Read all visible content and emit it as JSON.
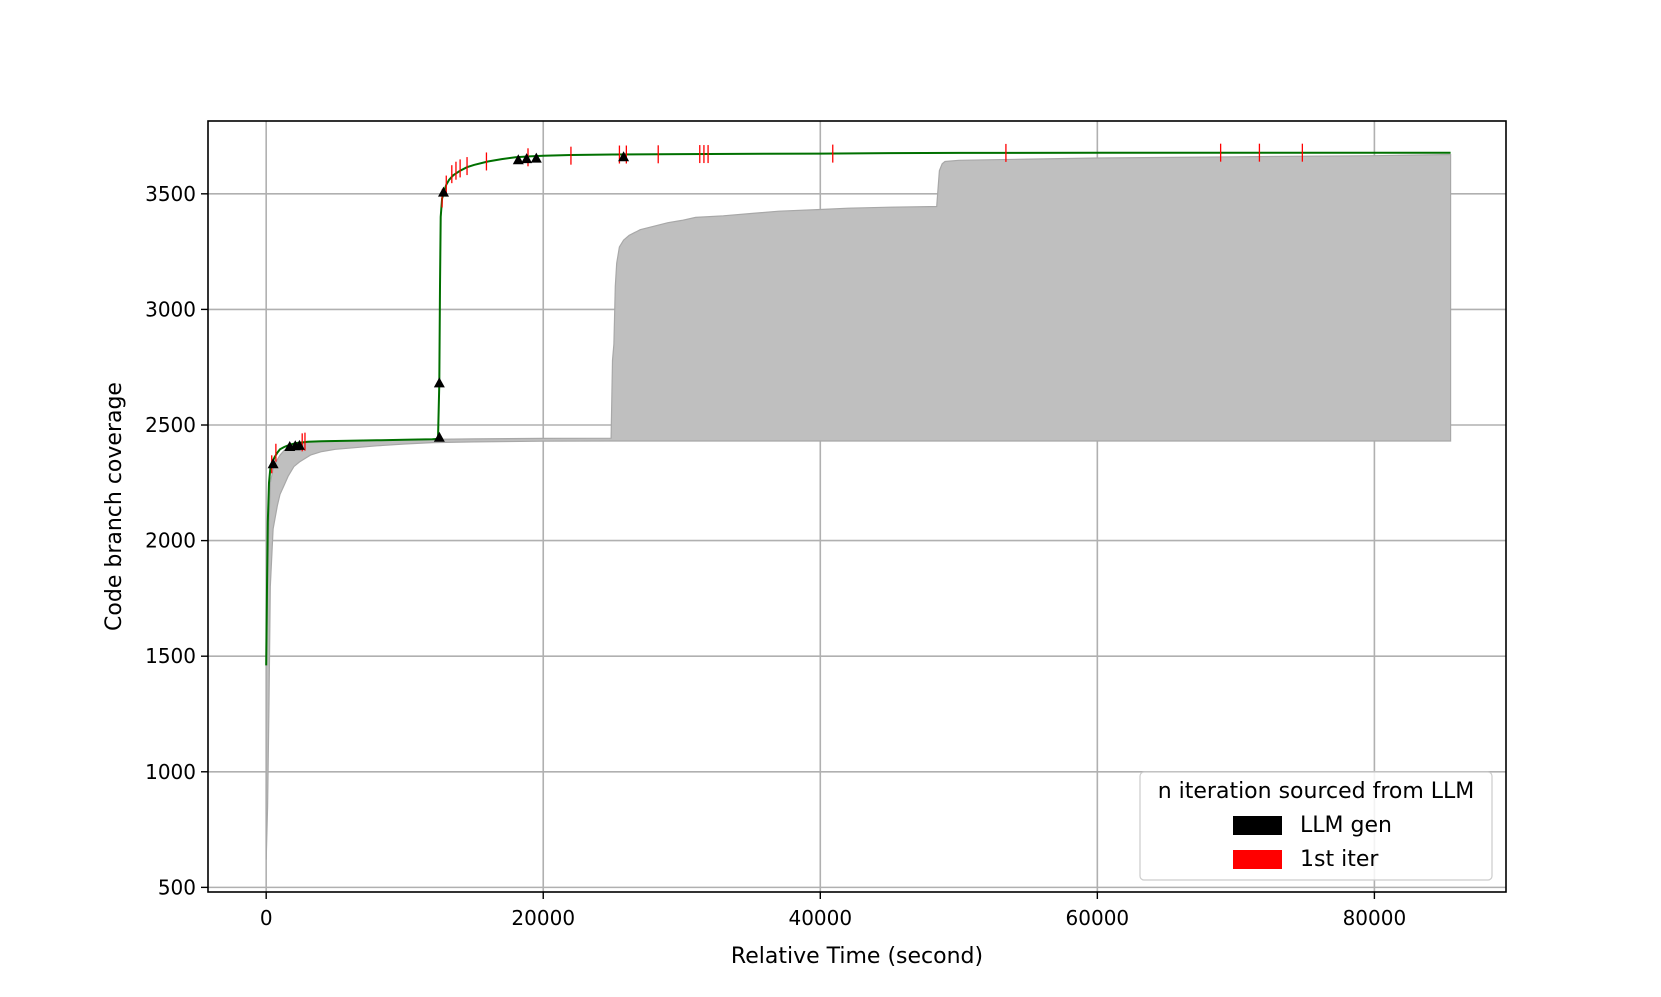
{
  "chart_data": {
    "type": "line",
    "title": "",
    "xlabel": "Relative Time (second)",
    "ylabel": "Code branch coverage",
    "xlim": [
      -4200,
      89500
    ],
    "ylim": [
      480,
      3815
    ],
    "xticks": [
      0,
      20000,
      40000,
      60000,
      80000
    ],
    "xtick_labels": [
      "0",
      "20000",
      "40000",
      "60000",
      "80000"
    ],
    "yticks": [
      500,
      1000,
      1500,
      2000,
      2500,
      3000,
      3500
    ],
    "ytick_labels": [
      "500",
      "1000",
      "1500",
      "2000",
      "2500",
      "3000",
      "3500"
    ],
    "grid": true,
    "legend": {
      "title": "n iteration sourced from LLM",
      "position": "lower-right",
      "entries": [
        {
          "label": "LLM gen",
          "color": "#000000"
        },
        {
          "label": "1st iter",
          "color": "#ff0000"
        }
      ]
    },
    "series": [
      {
        "kind": "line",
        "color": "#007000",
        "x": [
          0,
          60,
          120,
          200,
          300,
          450,
          600,
          800,
          1000,
          1300,
          1700,
          2200,
          3000,
          4000,
          6000,
          8000,
          10000,
          12000,
          12400,
          12500,
          12550,
          12600,
          12700,
          12800,
          12900,
          13000,
          13200,
          13500,
          14000,
          14500,
          15000,
          16000,
          17000,
          18000,
          19000,
          20000,
          22000,
          25000,
          30000,
          40000,
          45000,
          50000,
          60000,
          70000,
          80000,
          85500
        ],
        "y": [
          1460,
          1800,
          2080,
          2250,
          2310,
          2340,
          2360,
          2380,
          2395,
          2405,
          2415,
          2422,
          2428,
          2430,
          2432,
          2434,
          2436,
          2438,
          2440,
          2680,
          3100,
          3400,
          3480,
          3500,
          3520,
          3540,
          3560,
          3580,
          3600,
          3615,
          3625,
          3640,
          3650,
          3658,
          3662,
          3665,
          3668,
          3670,
          3672,
          3674,
          3676,
          3677,
          3678,
          3678,
          3678,
          3678
        ]
      }
    ],
    "band": {
      "color": "#bfbfbf",
      "x": [
        0,
        100,
        200,
        300,
        500,
        800,
        1000,
        1300,
        1600,
        2000,
        2400,
        2800,
        3200,
        4000,
        5000,
        8000,
        10000,
        12000,
        15000,
        20000,
        24900,
        25000,
        25100,
        25200,
        25300,
        25500,
        25800,
        26200,
        27000,
        28000,
        29000,
        30000,
        31000,
        33000,
        35000,
        37000,
        40000,
        42000,
        45000,
        48400,
        48500,
        48600,
        48800,
        49000,
        50000,
        55000,
        60000,
        70000,
        80000,
        85500
      ],
      "upper": [
        1450,
        1800,
        2080,
        2250,
        2310,
        2350,
        2370,
        2390,
        2405,
        2412,
        2418,
        2423,
        2427,
        2430,
        2432,
        2434,
        2436,
        2438,
        2440,
        2442,
        2443,
        2780,
        2850,
        3100,
        3200,
        3270,
        3300,
        3320,
        3345,
        3360,
        3375,
        3385,
        3398,
        3405,
        3415,
        3425,
        3432,
        3438,
        3442,
        3445,
        3520,
        3600,
        3630,
        3640,
        3645,
        3650,
        3655,
        3660,
        3665,
        3670
      ],
      "lower": [
        620,
        850,
        1300,
        1800,
        2050,
        2150,
        2200,
        2240,
        2280,
        2320,
        2340,
        2355,
        2370,
        2385,
        2395,
        2410,
        2418,
        2424,
        2427,
        2430,
        2431,
        2431,
        2431,
        2431,
        2431,
        2431,
        2431,
        2431,
        2431,
        2431,
        2431,
        2431,
        2431,
        2431,
        2431,
        2431,
        2431,
        2431,
        2431,
        2431,
        2431,
        2431,
        2431,
        2431,
        2431,
        2431,
        2431,
        2431,
        2431,
        2431
      ]
    },
    "llm_gen_markers": {
      "color": "#000000",
      "points": [
        {
          "x": 500,
          "y": 2330
        },
        {
          "x": 1700,
          "y": 2405
        },
        {
          "x": 2100,
          "y": 2408
        },
        {
          "x": 2400,
          "y": 2410
        },
        {
          "x": 12500,
          "y": 2445
        },
        {
          "x": 12500,
          "y": 2680
        },
        {
          "x": 12800,
          "y": 3505
        },
        {
          "x": 18200,
          "y": 3645
        },
        {
          "x": 18800,
          "y": 3650
        },
        {
          "x": 19500,
          "y": 3652
        },
        {
          "x": 25800,
          "y": 3658
        }
      ]
    },
    "first_iter_markers": {
      "color": "#ff0000",
      "points": [
        {
          "x": 400,
          "y": 2330
        },
        {
          "x": 700,
          "y": 2380
        },
        {
          "x": 2600,
          "y": 2425
        },
        {
          "x": 2800,
          "y": 2428
        },
        {
          "x": 12700,
          "y": 3480
        },
        {
          "x": 13000,
          "y": 3540
        },
        {
          "x": 13400,
          "y": 3585
        },
        {
          "x": 13700,
          "y": 3600
        },
        {
          "x": 14000,
          "y": 3610
        },
        {
          "x": 14500,
          "y": 3620
        },
        {
          "x": 15900,
          "y": 3640
        },
        {
          "x": 18900,
          "y": 3658
        },
        {
          "x": 22000,
          "y": 3665
        },
        {
          "x": 25500,
          "y": 3670
        },
        {
          "x": 26000,
          "y": 3670
        },
        {
          "x": 28300,
          "y": 3671
        },
        {
          "x": 31300,
          "y": 3672
        },
        {
          "x": 31600,
          "y": 3672
        },
        {
          "x": 31900,
          "y": 3672
        },
        {
          "x": 40900,
          "y": 3674
        },
        {
          "x": 53400,
          "y": 3677
        },
        {
          "x": 68900,
          "y": 3678
        },
        {
          "x": 71700,
          "y": 3678
        },
        {
          "x": 74800,
          "y": 3678
        }
      ]
    }
  }
}
